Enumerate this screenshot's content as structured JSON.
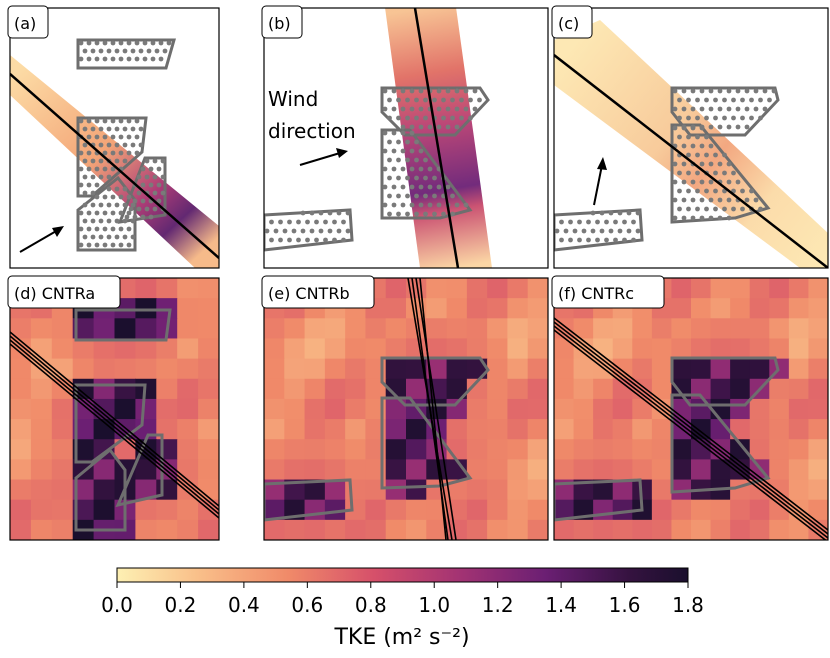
{
  "colors": {
    "colormap": [
      "#fdf0b3",
      "#f9c08a",
      "#f08a69",
      "#d6506a",
      "#a33373",
      "#6b1f73",
      "#34123f",
      "#1a0f2d"
    ],
    "building_outline": "#6e6e6e",
    "dots": "#7a7a7a",
    "line": "#000000"
  },
  "annotation": {
    "wind_label_line1": "Wind",
    "wind_label_line2": "direction"
  },
  "panels": [
    {
      "id": "a",
      "label": "(a)",
      "kind": "transect"
    },
    {
      "id": "b",
      "label": "(b)",
      "kind": "transect"
    },
    {
      "id": "c",
      "label": "(c)",
      "kind": "transect"
    },
    {
      "id": "d",
      "label": "(d) CNTRa",
      "kind": "field"
    },
    {
      "id": "e",
      "label": "(e) CNTRb",
      "kind": "field"
    },
    {
      "id": "f",
      "label": "(f) CNTRc",
      "kind": "field"
    }
  ],
  "chart_data": {
    "type": "heatmap",
    "title": "",
    "colorbar": {
      "label": "TKE (m² s⁻²)",
      "min": 0.0,
      "max": 1.8,
      "ticks": [
        "0.0",
        "0.2",
        "0.4",
        "0.6",
        "0.8",
        "1.0",
        "1.2",
        "1.4",
        "1.6",
        "1.8"
      ]
    },
    "panels": [
      "(a)",
      "(b)",
      "(c)",
      "(d) CNTRa",
      "(e) CNTRb",
      "(f) CNTRc"
    ]
  }
}
